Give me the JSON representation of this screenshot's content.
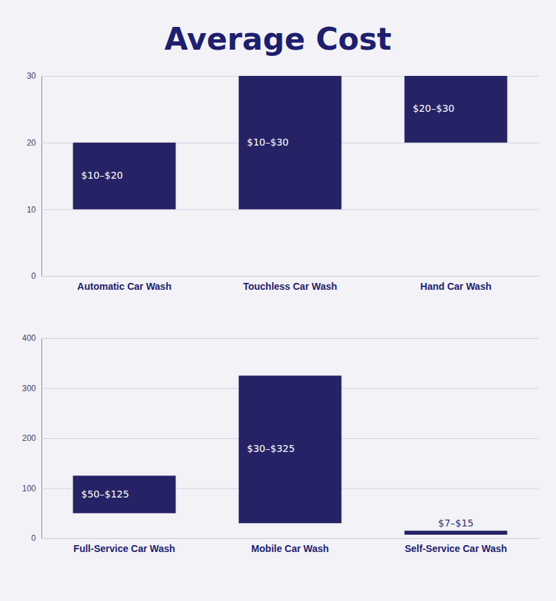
{
  "chart_data": [
    {
      "type": "bar",
      "title": "Average Cost",
      "categories": [
        "Automatic Car Wash",
        "Touchless Car Wash",
        "Hand Car Wash"
      ],
      "bottoms": [
        10,
        10,
        20
      ],
      "values": [
        20,
        30,
        30
      ],
      "value_labels": [
        "$10–$20",
        "$10–$30",
        "$20–$30"
      ],
      "data_labels": true,
      "color": "#252365",
      "ylim": [
        0,
        30
      ],
      "yticks": [
        0,
        10,
        20,
        30
      ],
      "grid": true
    },
    {
      "type": "bar",
      "categories": [
        "Full-Service Car Wash",
        "Mobile Car Wash",
        "Self-Service Car Wash"
      ],
      "bottoms": [
        50,
        30,
        7
      ],
      "values": [
        125,
        325,
        15
      ],
      "value_labels": [
        "$50–$125",
        "$30–$325",
        "$7–$15"
      ],
      "data_labels": true,
      "color": "#252365",
      "ylim": [
        0,
        400
      ],
      "yticks": [
        0,
        100,
        200,
        300,
        400
      ],
      "grid": true
    }
  ]
}
